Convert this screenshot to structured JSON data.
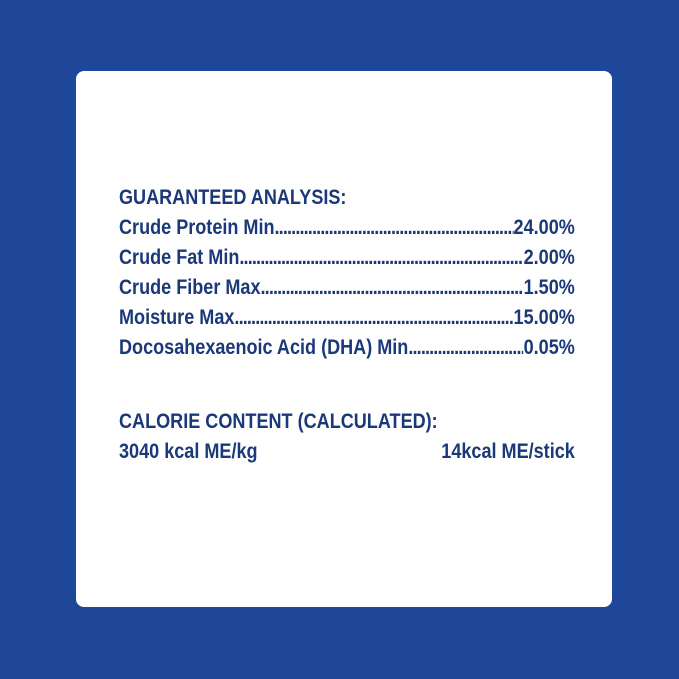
{
  "guaranteed_analysis": {
    "heading": "GUARANTEED ANALYSIS:",
    "items": [
      {
        "label": "Crude Protein Min",
        "value": "24.00%"
      },
      {
        "label": "Crude Fat Min",
        "value": "2.00%"
      },
      {
        "label": "Crude Fiber Max",
        "value": "1.50%"
      },
      {
        "label": "Moisture Max",
        "value": "15.00%"
      },
      {
        "label": "Docosahexaenoic Acid (DHA) Min",
        "value": "0.05%"
      }
    ]
  },
  "calorie_content": {
    "heading": "CALORIE CONTENT (CALCULATED):",
    "per_kg": "3040 kcal ME/kg",
    "per_stick": "14kcal ME/stick"
  },
  "colors": {
    "background": "#1f4799",
    "text": "#1b3879",
    "card": "#ffffff"
  }
}
